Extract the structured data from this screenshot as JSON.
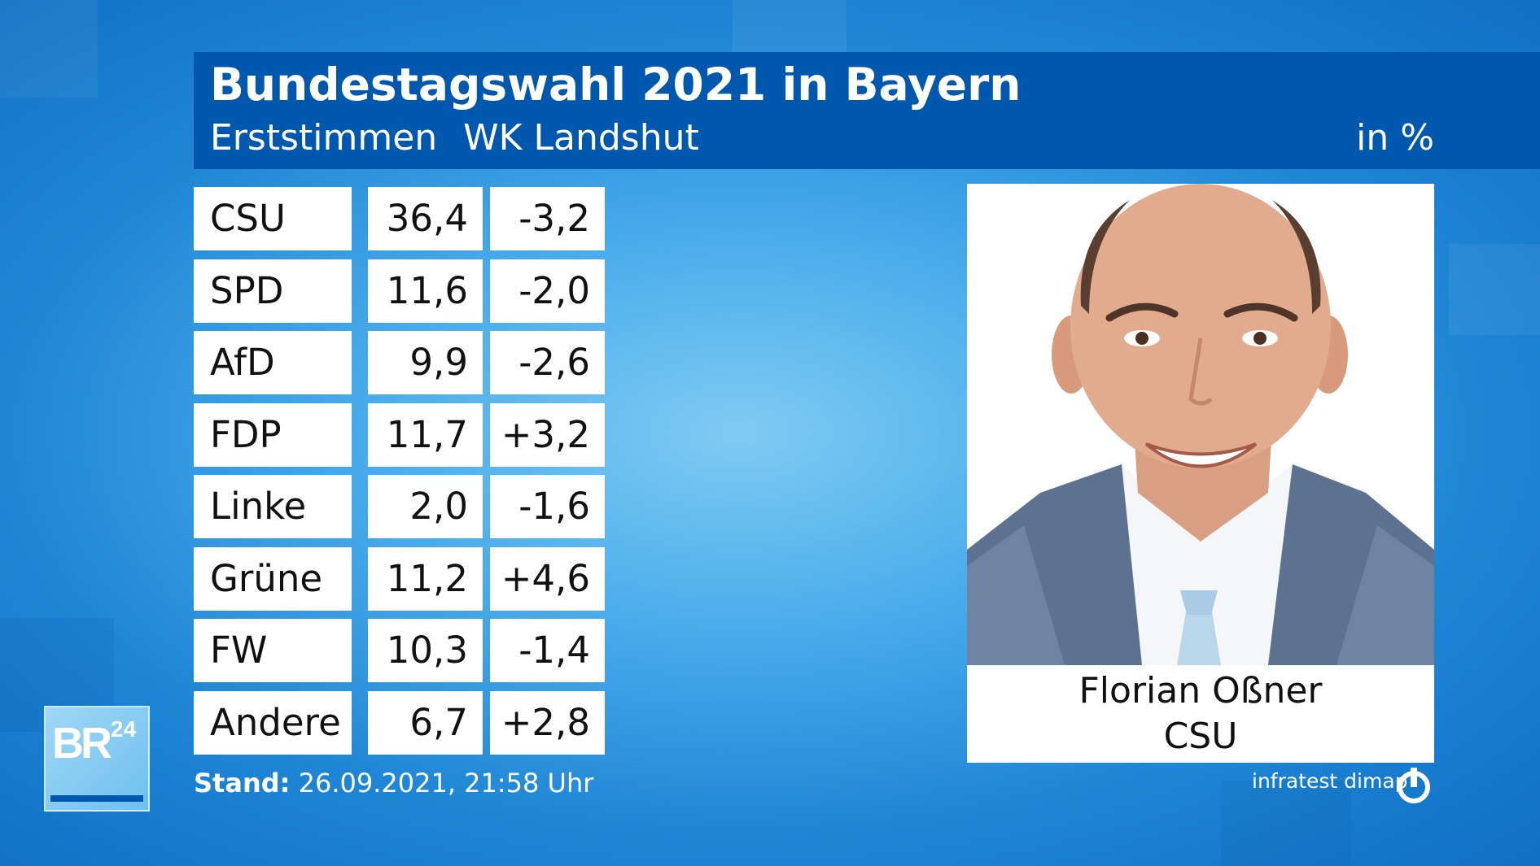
{
  "chart_data": {
    "type": "table",
    "title": "Bundestagswahl 2021 in Bayern",
    "subtitle": "Erststimmen",
    "region": "WK Landshut",
    "unit": "in %",
    "rows": [
      {
        "party": "CSU",
        "share": "36,4",
        "diff": "-3,2"
      },
      {
        "party": "SPD",
        "share": "11,6",
        "diff": "-2,0"
      },
      {
        "party": "AfD",
        "share": "9,9",
        "diff": "-2,6"
      },
      {
        "party": "FDP",
        "share": "11,7",
        "diff": "+3,2"
      },
      {
        "party": "Linke",
        "share": "2,0",
        "diff": "-1,6"
      },
      {
        "party": "Grüne",
        "share": "11,2",
        "diff": "+4,6"
      },
      {
        "party": "FW",
        "share": "10,3",
        "diff": "-1,4"
      },
      {
        "party": "Andere",
        "share": "6,7",
        "diff": "+2,8"
      }
    ]
  },
  "candidate": {
    "name": "Florian Oßner",
    "party": "CSU"
  },
  "footer": {
    "stand_label": "Stand:",
    "stand_value": "26.09.2021, 21:58 Uhr",
    "source": "infratest dimap"
  },
  "logo": {
    "text": "BR24"
  },
  "colors": {
    "header": "#0058ae",
    "background": "#45a9ea",
    "cell": "#ffffff",
    "text": "#111111"
  }
}
